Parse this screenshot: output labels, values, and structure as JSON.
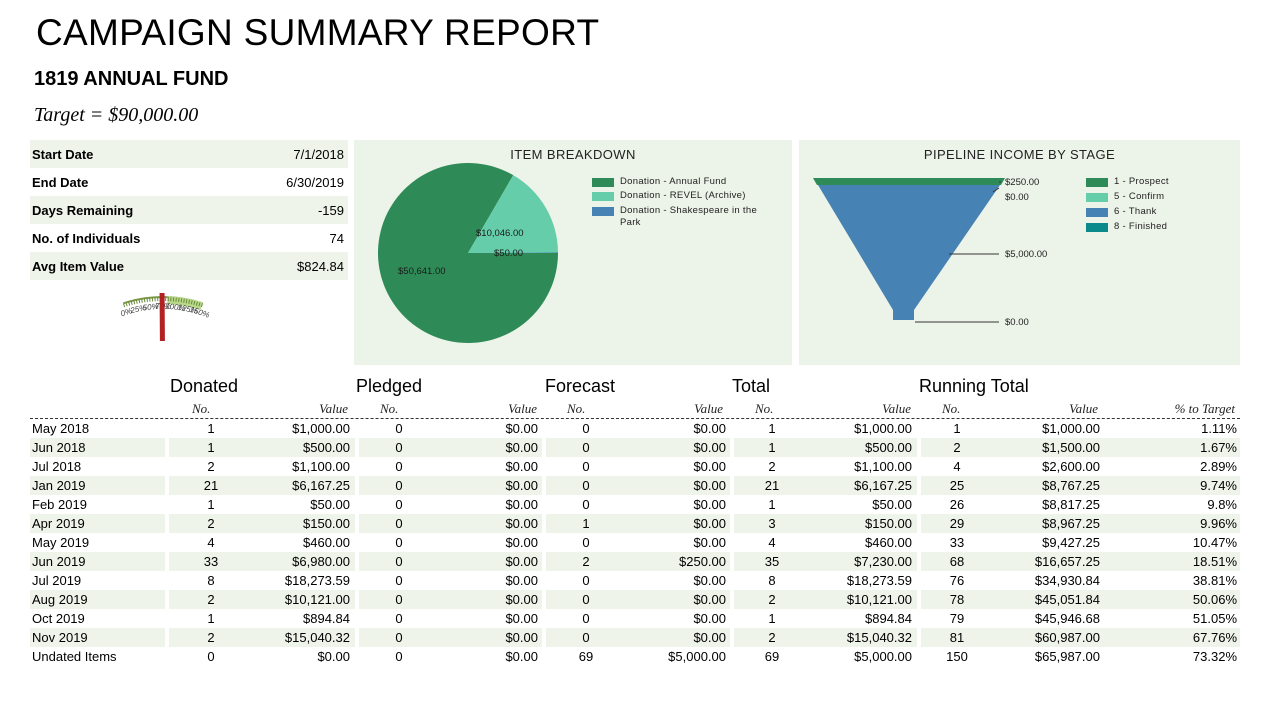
{
  "header": {
    "title": "CAMPAIGN SUMMARY REPORT",
    "subtitle": "1819 ANNUAL FUND",
    "target": "Target = $90,000.00"
  },
  "summary": [
    {
      "label": "Start Date",
      "value": "7/1/2018"
    },
    {
      "label": "End Date",
      "value": "6/30/2019"
    },
    {
      "label": "Days Remaining",
      "value": "-159"
    },
    {
      "label": "No. of Individuals",
      "value": "74"
    },
    {
      "label": "Avg Item Value",
      "value": "$824.84"
    }
  ],
  "gauge": {
    "ticks": [
      "0%",
      "25%",
      "50%",
      "75%",
      "100%",
      "125%",
      "150%"
    ],
    "value_percent": 73.32
  },
  "colors": {
    "dark_green": "#2e8b57",
    "light_green": "#66cdaa",
    "blue": "#4682b4",
    "teal": "#0a8a8a",
    "panel_bg": "#ecf3e8",
    "row_shade": "#eef4ea",
    "needle": "#b22222"
  },
  "chart_data": [
    {
      "type": "pie",
      "title": "ITEM BREAKDOWN",
      "categories": [
        "Donation - Annual Fund",
        "Donation - REVEL (Archive)",
        "Donation - Shakespeare in the Park"
      ],
      "values": [
        50641.0,
        10046.0,
        50.0
      ],
      "data_labels": [
        "$50,641.00",
        "$10,046.00",
        "$50.00"
      ],
      "legend": "right"
    },
    {
      "type": "funnel",
      "title": "PIPELINE INCOME BY STAGE",
      "series": [
        {
          "name": "1 - Prospect",
          "value": 250.0,
          "label": "$250.00"
        },
        {
          "name": "5 - Confirm",
          "value": 0.0,
          "label": "$0.00"
        },
        {
          "name": "6 - Thank",
          "value": 5000.0,
          "label": "$5,000.00"
        },
        {
          "name": "8 - Finished",
          "value": 0.0,
          "label": "$0.00"
        }
      ],
      "legend": "right"
    }
  ],
  "table": {
    "groups": [
      "Donated",
      "Pledged",
      "Forecast",
      "Total",
      "Running Total"
    ],
    "subheaders": {
      "no": "No.",
      "value": "Value",
      "pct": "% to Target"
    },
    "rows": [
      [
        "May 2018",
        "1",
        "$1,000.00",
        "0",
        "$0.00",
        "0",
        "$0.00",
        "1",
        "$1,000.00",
        "1",
        "$1,000.00",
        "1.11%"
      ],
      [
        "Jun 2018",
        "1",
        "$500.00",
        "0",
        "$0.00",
        "0",
        "$0.00",
        "1",
        "$500.00",
        "2",
        "$1,500.00",
        "1.67%"
      ],
      [
        "Jul 2018",
        "2",
        "$1,100.00",
        "0",
        "$0.00",
        "0",
        "$0.00",
        "2",
        "$1,100.00",
        "4",
        "$2,600.00",
        "2.89%"
      ],
      [
        "Jan 2019",
        "21",
        "$6,167.25",
        "0",
        "$0.00",
        "0",
        "$0.00",
        "21",
        "$6,167.25",
        "25",
        "$8,767.25",
        "9.74%"
      ],
      [
        "Feb 2019",
        "1",
        "$50.00",
        "0",
        "$0.00",
        "0",
        "$0.00",
        "1",
        "$50.00",
        "26",
        "$8,817.25",
        "9.8%"
      ],
      [
        "Apr 2019",
        "2",
        "$150.00",
        "0",
        "$0.00",
        "1",
        "$0.00",
        "3",
        "$150.00",
        "29",
        "$8,967.25",
        "9.96%"
      ],
      [
        "May 2019",
        "4",
        "$460.00",
        "0",
        "$0.00",
        "0",
        "$0.00",
        "4",
        "$460.00",
        "33",
        "$9,427.25",
        "10.47%"
      ],
      [
        "Jun 2019",
        "33",
        "$6,980.00",
        "0",
        "$0.00",
        "2",
        "$250.00",
        "35",
        "$7,230.00",
        "68",
        "$16,657.25",
        "18.51%"
      ],
      [
        "Jul 2019",
        "8",
        "$18,273.59",
        "0",
        "$0.00",
        "0",
        "$0.00",
        "8",
        "$18,273.59",
        "76",
        "$34,930.84",
        "38.81%"
      ],
      [
        "Aug 2019",
        "2",
        "$10,121.00",
        "0",
        "$0.00",
        "0",
        "$0.00",
        "2",
        "$10,121.00",
        "78",
        "$45,051.84",
        "50.06%"
      ],
      [
        "Oct 2019",
        "1",
        "$894.84",
        "0",
        "$0.00",
        "0",
        "$0.00",
        "1",
        "$894.84",
        "79",
        "$45,946.68",
        "51.05%"
      ],
      [
        "Nov 2019",
        "2",
        "$15,040.32",
        "0",
        "$0.00",
        "0",
        "$0.00",
        "2",
        "$15,040.32",
        "81",
        "$60,987.00",
        "67.76%"
      ],
      [
        "Undated Items",
        "0",
        "$0.00",
        "0",
        "$0.00",
        "69",
        "$5,000.00",
        "69",
        "$5,000.00",
        "150",
        "$65,987.00",
        "73.32%"
      ]
    ]
  }
}
